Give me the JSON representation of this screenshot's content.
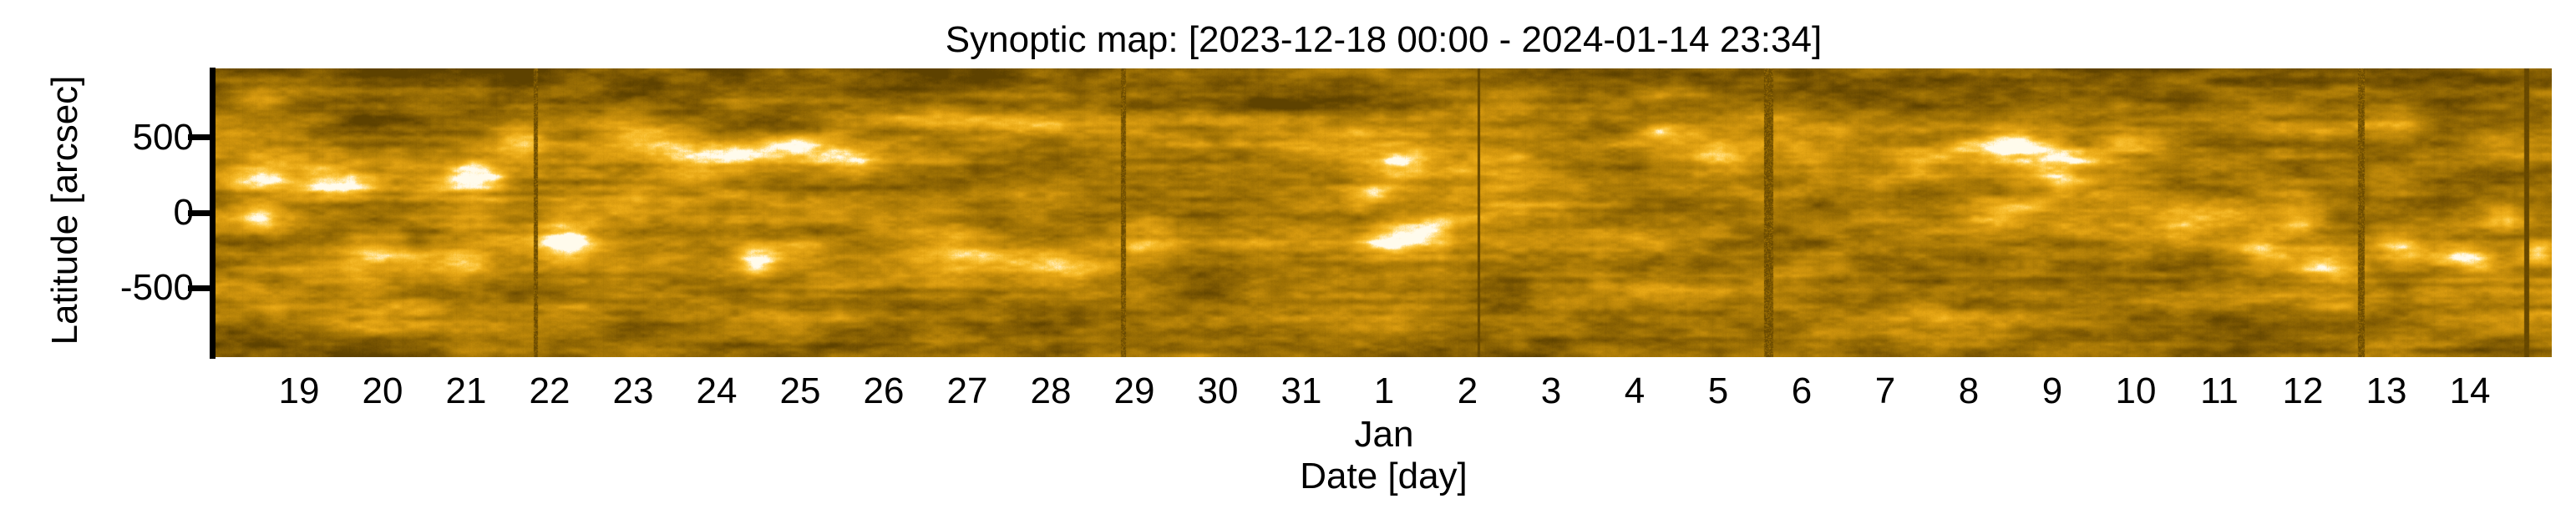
{
  "title": "Synoptic map: [2023-12-18 00:00 - 2024-01-14 23:34]",
  "axes": {
    "y_label": "Latitude [arcsec]",
    "x_label": "Date [day]",
    "month_label": "Jan",
    "y_ticks": [
      {
        "label": "500",
        "value": 500
      },
      {
        "label": "0",
        "value": 0
      },
      {
        "label": "-500",
        "value": -500
      }
    ],
    "x_ticks": [
      "19",
      "20",
      "21",
      "22",
      "23",
      "24",
      "25",
      "26",
      "27",
      "28",
      "29",
      "30",
      "31",
      "1",
      "2",
      "3",
      "4",
      "5",
      "6",
      "7",
      "8",
      "9",
      "10",
      "11",
      "12",
      "13",
      "14"
    ]
  },
  "chart_data": {
    "type": "heatmap",
    "title": "Synoptic map: [2023-12-18 00:00 - 2024-01-14 23:34]",
    "xlabel": "Date [day]",
    "ylabel": "Latitude [arcsec]",
    "x_start": "2023-12-18 00:00",
    "x_end": "2024-01-14 23:34",
    "span_days": 27.98,
    "month_label": "Jan",
    "month_label_tick_index": 13,
    "ylim": [
      -960,
      960
    ],
    "y_tick_values": [
      500,
      0,
      -500
    ],
    "x_tick_days": [
      19,
      20,
      21,
      22,
      23,
      24,
      25,
      26,
      27,
      28,
      29,
      30,
      31,
      1,
      2,
      3,
      4,
      5,
      6,
      7,
      8,
      9,
      10,
      11,
      12,
      13,
      14
    ],
    "grid": false,
    "legend": "none",
    "colormap_name": "solar-gold (EUV 174 style)",
    "colormap_stops": [
      [
        0.0,
        "#5e4200"
      ],
      [
        0.15,
        "#7a5602"
      ],
      [
        0.3,
        "#976c04"
      ],
      [
        0.45,
        "#b48108"
      ],
      [
        0.6,
        "#d2960e"
      ],
      [
        0.72,
        "#e9a916"
      ],
      [
        0.82,
        "#f8bd2c"
      ],
      [
        0.9,
        "#ffd35e"
      ],
      [
        0.96,
        "#ffeaae"
      ],
      [
        1.0,
        "#fffbec"
      ]
    ],
    "data_gaps": [
      {
        "fx": 0.137,
        "w": 5,
        "style": "speckle"
      },
      {
        "fx": 0.3886,
        "w": 6,
        "style": "speckle"
      },
      {
        "fx": 0.5406,
        "w": 3,
        "style": "solid"
      },
      {
        "fx": 0.6647,
        "w": 11,
        "style": "speckle"
      },
      {
        "fx": 0.9185,
        "w": 8,
        "style": "speckle"
      },
      {
        "fx": 0.9893,
        "w": 6,
        "style": "solid"
      }
    ],
    "bright_features": [
      {
        "fx": 0.019,
        "fy": 0.1,
        "rx": 0.012,
        "ry": 0.045,
        "amp": 0.33
      },
      {
        "fx": 0.019,
        "fy": 0.37,
        "rx": 0.013,
        "ry": 0.065,
        "amp": 0.5
      },
      {
        "fx": 0.053,
        "fy": 0.4,
        "rx": 0.017,
        "ry": 0.055,
        "amp": 0.45
      },
      {
        "fx": 0.019,
        "fy": 0.52,
        "rx": 0.01,
        "ry": 0.05,
        "amp": 0.38
      },
      {
        "fx": 0.069,
        "fy": 0.64,
        "rx": 0.018,
        "ry": 0.055,
        "amp": 0.4
      },
      {
        "fx": 0.11,
        "fy": 0.385,
        "rx": 0.015,
        "ry": 0.065,
        "amp": 0.62
      },
      {
        "fx": 0.129,
        "fy": 0.26,
        "rx": 0.011,
        "ry": 0.055,
        "amp": 0.45
      },
      {
        "fx": 0.106,
        "fy": 0.67,
        "rx": 0.012,
        "ry": 0.05,
        "amp": 0.33
      },
      {
        "fx": 0.15,
        "fy": 0.61,
        "rx": 0.012,
        "ry": 0.065,
        "amp": 0.55
      },
      {
        "fx": 0.18,
        "fy": 0.25,
        "rx": 0.018,
        "ry": 0.055,
        "amp": 0.45
      },
      {
        "fx": 0.215,
        "fy": 0.3,
        "rx": 0.022,
        "ry": 0.06,
        "amp": 0.52
      },
      {
        "fx": 0.247,
        "fy": 0.27,
        "rx": 0.02,
        "ry": 0.055,
        "amp": 0.45
      },
      {
        "fx": 0.276,
        "fy": 0.33,
        "rx": 0.018,
        "ry": 0.05,
        "amp": 0.4
      },
      {
        "fx": 0.231,
        "fy": 0.66,
        "rx": 0.01,
        "ry": 0.055,
        "amp": 0.7
      },
      {
        "fx": 0.251,
        "fy": 0.62,
        "rx": 0.012,
        "ry": 0.05,
        "amp": 0.4
      },
      {
        "fx": 0.319,
        "fy": 0.63,
        "rx": 0.025,
        "ry": 0.075,
        "amp": 0.38
      },
      {
        "fx": 0.362,
        "fy": 0.66,
        "rx": 0.022,
        "ry": 0.065,
        "amp": 0.4
      },
      {
        "fx": 0.398,
        "fy": 0.63,
        "rx": 0.015,
        "ry": 0.06,
        "amp": 0.32
      },
      {
        "fx": 0.301,
        "fy": 0.17,
        "rx": 0.03,
        "ry": 0.042,
        "amp": 0.28
      },
      {
        "fx": 0.355,
        "fy": 0.2,
        "rx": 0.03,
        "ry": 0.04,
        "amp": 0.26
      },
      {
        "fx": 0.494,
        "fy": 0.43,
        "rx": 0.01,
        "ry": 0.05,
        "amp": 0.38
      },
      {
        "fx": 0.506,
        "fy": 0.33,
        "rx": 0.012,
        "ry": 0.05,
        "amp": 0.45
      },
      {
        "fx": 0.503,
        "fy": 0.6,
        "rx": 0.014,
        "ry": 0.055,
        "amp": 0.5
      },
      {
        "fx": 0.523,
        "fy": 0.56,
        "rx": 0.01,
        "ry": 0.05,
        "amp": 0.4
      },
      {
        "fx": 0.619,
        "fy": 0.225,
        "rx": 0.014,
        "ry": 0.055,
        "amp": 0.45
      },
      {
        "fx": 0.643,
        "fy": 0.3,
        "rx": 0.012,
        "ry": 0.05,
        "amp": 0.42
      },
      {
        "fx": 0.73,
        "fy": 0.33,
        "rx": 0.015,
        "ry": 0.065,
        "amp": 0.5
      },
      {
        "fx": 0.766,
        "fy": 0.27,
        "rx": 0.02,
        "ry": 0.065,
        "amp": 0.55
      },
      {
        "fx": 0.791,
        "fy": 0.355,
        "rx": 0.016,
        "ry": 0.06,
        "amp": 0.48
      },
      {
        "fx": 0.759,
        "fy": 0.5,
        "rx": 0.018,
        "ry": 0.055,
        "amp": 0.38
      },
      {
        "fx": 0.821,
        "fy": 0.24,
        "rx": 0.016,
        "ry": 0.045,
        "amp": 0.35
      },
      {
        "fx": 0.841,
        "fy": 0.57,
        "rx": 0.014,
        "ry": 0.05,
        "amp": 0.35
      },
      {
        "fx": 0.873,
        "fy": 0.63,
        "rx": 0.016,
        "ry": 0.06,
        "amp": 0.5
      },
      {
        "fx": 0.902,
        "fy": 0.68,
        "rx": 0.014,
        "ry": 0.055,
        "amp": 0.45
      },
      {
        "fx": 0.894,
        "fy": 0.52,
        "rx": 0.012,
        "ry": 0.045,
        "amp": 0.38
      },
      {
        "fx": 0.937,
        "fy": 0.63,
        "rx": 0.012,
        "ry": 0.055,
        "amp": 0.42
      },
      {
        "fx": 0.964,
        "fy": 0.66,
        "rx": 0.012,
        "ry": 0.055,
        "amp": 0.48
      },
      {
        "fx": 0.98,
        "fy": 0.52,
        "rx": 0.01,
        "ry": 0.045,
        "amp": 0.33
      },
      {
        "fx": 0.993,
        "fy": 0.63,
        "rx": 0.008,
        "ry": 0.05,
        "amp": 0.38
      },
      {
        "fx": 0.939,
        "fy": 0.2,
        "rx": 0.014,
        "ry": 0.04,
        "amp": 0.28
      },
      {
        "fx": 0.977,
        "fy": 0.25,
        "rx": 0.012,
        "ry": 0.04,
        "amp": 0.28
      }
    ],
    "dark_features": [
      {
        "fx": 0.064,
        "fy": 0.2,
        "rx": 0.018,
        "ry": 0.1,
        "amp": -0.22
      },
      {
        "fx": 0.426,
        "fy": 0.34,
        "rx": 0.03,
        "ry": 0.11,
        "amp": -0.18
      },
      {
        "fx": 0.458,
        "fy": 0.11,
        "rx": 0.035,
        "ry": 0.07,
        "amp": -0.15
      },
      {
        "fx": 0.015,
        "fy": 0.11,
        "rx": 0.025,
        "ry": 0.08,
        "amp": -0.18
      },
      {
        "fx": 0.23,
        "fy": 0.05,
        "rx": 0.04,
        "ry": 0.06,
        "amp": -0.18
      },
      {
        "fx": 0.3,
        "fy": 0.45,
        "rx": 0.06,
        "ry": 0.08,
        "amp": -0.1
      },
      {
        "fx": 0.5,
        "fy": 0.15,
        "rx": 0.05,
        "ry": 0.06,
        "amp": -0.1
      },
      {
        "fx": 0.551,
        "fy": 0.69,
        "rx": 0.03,
        "ry": 0.08,
        "amp": -0.16
      },
      {
        "fx": 0.641,
        "fy": 0.72,
        "rx": 0.04,
        "ry": 0.08,
        "amp": -0.14
      },
      {
        "fx": 0.694,
        "fy": 0.08,
        "rx": 0.035,
        "ry": 0.06,
        "amp": -0.16
      }
    ]
  }
}
